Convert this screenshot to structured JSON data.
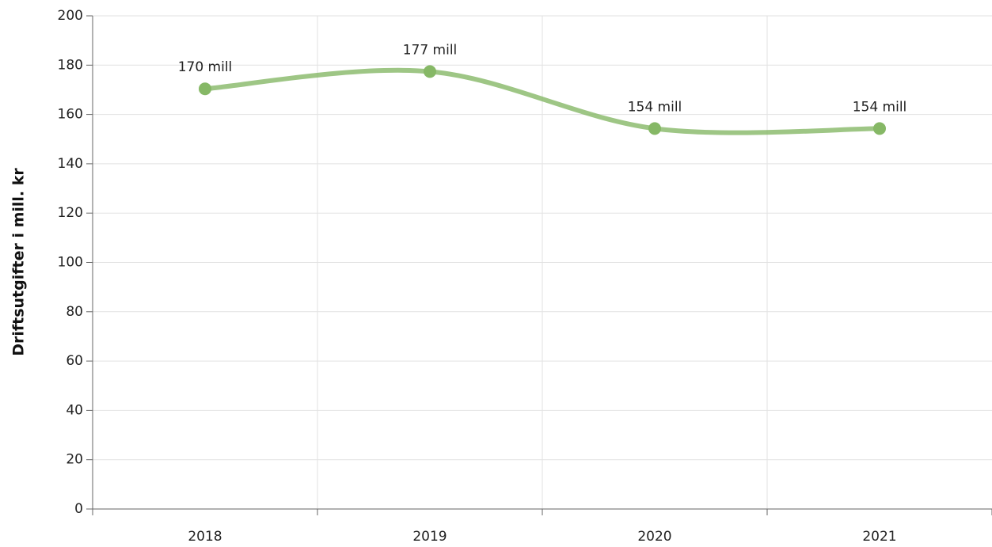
{
  "chart_data": {
    "type": "line",
    "y_axis_label": "Driftsutgifter i mill. kr",
    "categories": [
      "2018",
      "2019",
      "2020",
      "2021"
    ],
    "series": [
      {
        "name": "Driftsutgifter",
        "color": "#86b866",
        "values": [
          170.4,
          177.4,
          154.3,
          154.3
        ],
        "value_labels": [
          "170 mill",
          "177 mill",
          "154 mill",
          "154 mill"
        ]
      }
    ],
    "ylim": [
      0,
      200
    ],
    "yticks": [
      0,
      20,
      40,
      60,
      80,
      100,
      120,
      140,
      160,
      180,
      200
    ],
    "grid": true,
    "smooth": true
  }
}
